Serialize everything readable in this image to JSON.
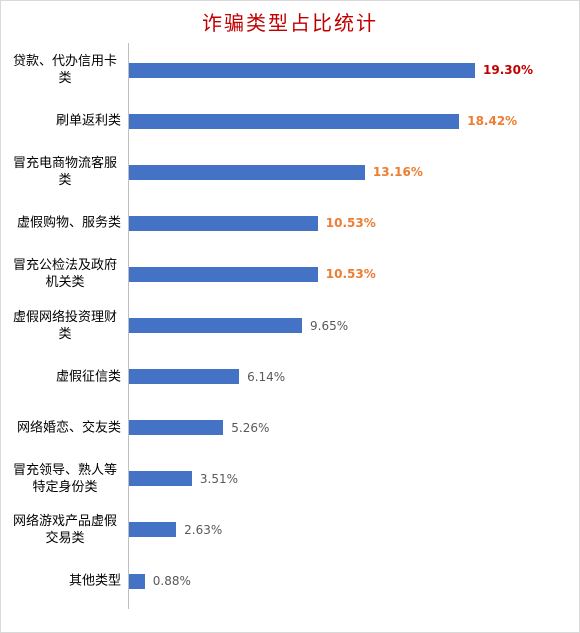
{
  "chart_data": {
    "type": "bar",
    "orientation": "horizontal",
    "title": "诈骗类型占比统计",
    "categories": [
      "贷款、代办信用卡类",
      "刷单返利类",
      "冒充电商物流客服类",
      "虚假购物、服务类",
      "冒充公检法及政府机关类",
      "虚假网络投资理财类",
      "虚假征信类",
      "网络婚恋、交友类",
      "冒充领导、熟人等特定身份类",
      "网络游戏产品虚假交易类",
      "其他类型"
    ],
    "values": [
      19.3,
      18.42,
      13.16,
      10.53,
      10.53,
      9.65,
      6.14,
      5.26,
      3.51,
      2.63,
      0.88
    ],
    "value_labels": [
      "19.30%",
      "18.42%",
      "13.16%",
      "10.53%",
      "10.53%",
      "9.65%",
      "6.14%",
      "5.26%",
      "3.51%",
      "2.63%",
      "0.88%"
    ],
    "value_label_colors": [
      "#c00000",
      "#ed7d31",
      "#ed7d31",
      "#ed7d31",
      "#ed7d31",
      "#595959",
      "#595959",
      "#595959",
      "#595959",
      "#595959",
      "#595959"
    ],
    "value_label_bold": [
      true,
      true,
      true,
      true,
      true,
      false,
      false,
      false,
      false,
      false,
      false
    ],
    "color": "#4472c4",
    "title_color": "#c00000"
  }
}
